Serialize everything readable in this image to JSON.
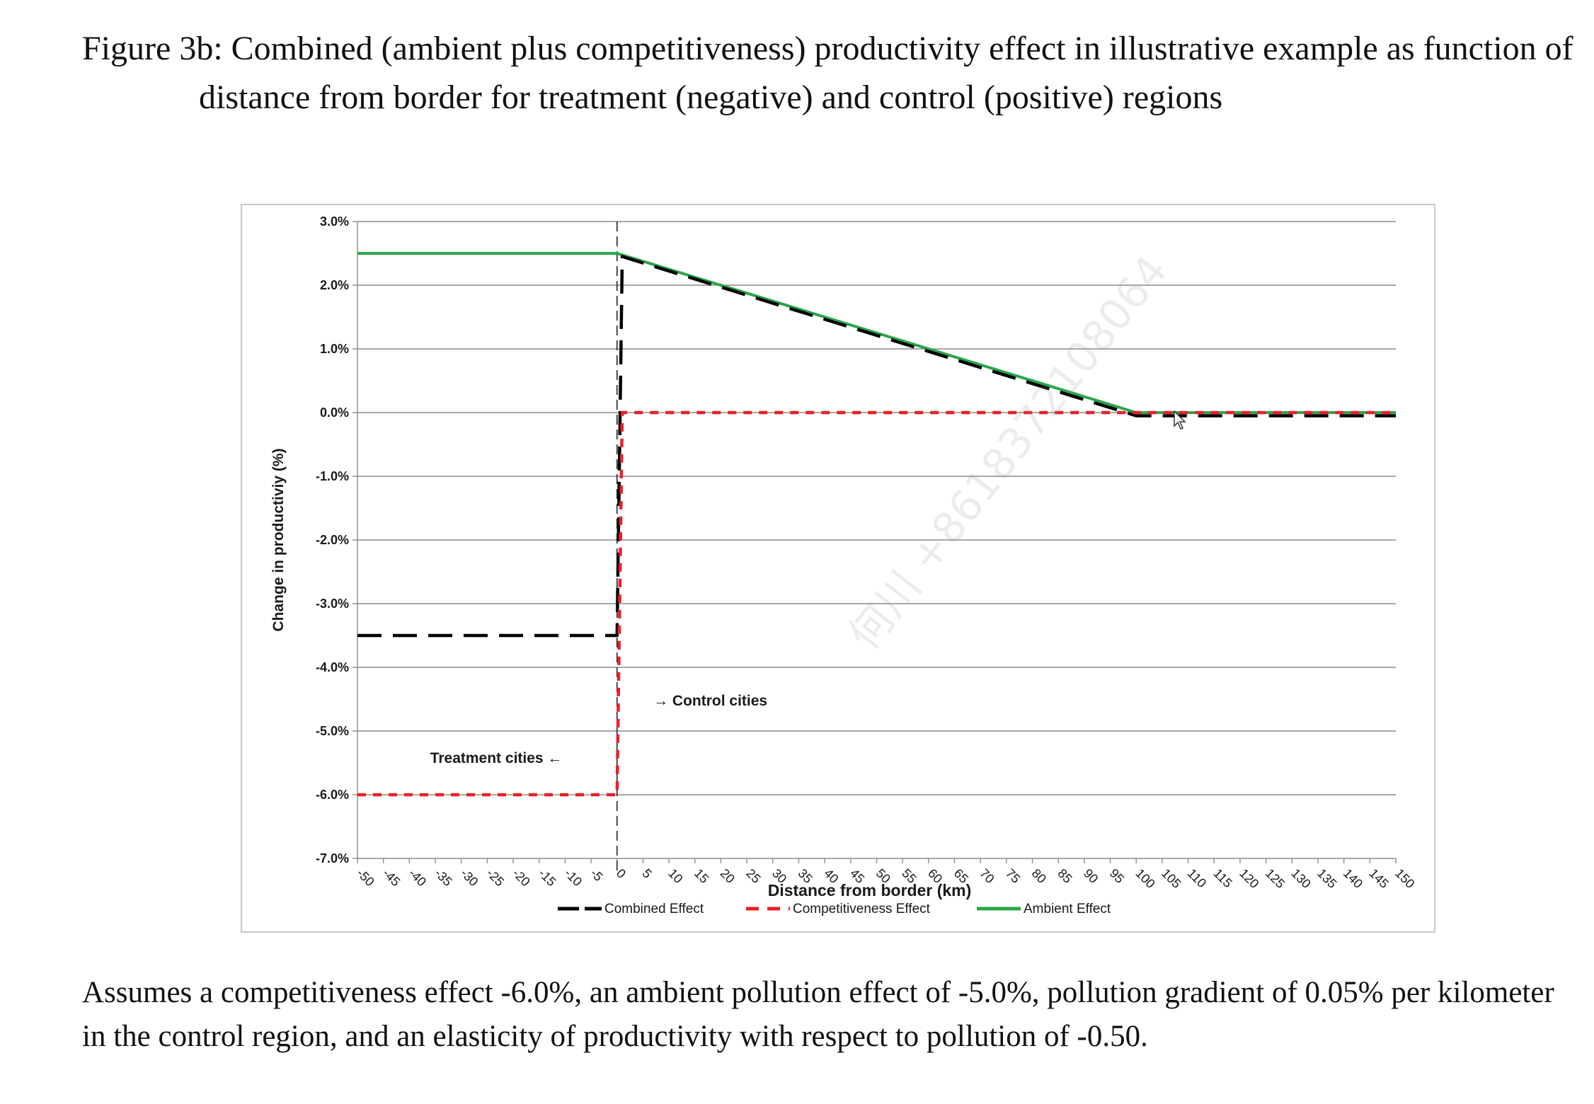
{
  "figure": {
    "title": "Figure 3b: Combined (ambient plus competitiveness) productivity effect in illustrative example as function of distance from border for treatment (negative) and control (positive) regions",
    "caption": "Assumes a competitiveness effect -6.0%, an ambient pollution effect of -5.0%, pollution gradient of 0.05% per kilometer in the control region, and an elasticity of productivity with respect to pollution of -0.50.",
    "watermark": "何川 +8618372108064"
  },
  "chart_data": {
    "type": "line",
    "title": "",
    "xlabel": "Distance from border (km)",
    "ylabel": "Change in productiviy (%)",
    "xlim": [
      -50,
      150
    ],
    "ylim": [
      -7.0,
      3.0
    ],
    "x_ticks": [
      -50,
      -45,
      -40,
      -35,
      -30,
      -25,
      -20,
      -15,
      -10,
      -5,
      0,
      5,
      10,
      15,
      20,
      25,
      30,
      35,
      40,
      45,
      50,
      55,
      60,
      65,
      70,
      75,
      80,
      85,
      90,
      95,
      100,
      105,
      110,
      115,
      120,
      125,
      130,
      135,
      140,
      145,
      150
    ],
    "y_ticks": [
      {
        "value": 3.0,
        "label": "3.0%"
      },
      {
        "value": 2.0,
        "label": "2.0%"
      },
      {
        "value": 1.0,
        "label": "1.0%"
      },
      {
        "value": 0.0,
        "label": "0.0%"
      },
      {
        "value": -1.0,
        "label": "-1.0%"
      },
      {
        "value": -2.0,
        "label": "-2.0%"
      },
      {
        "value": -3.0,
        "label": "-3.0%"
      },
      {
        "value": -4.0,
        "label": "-4.0%"
      },
      {
        "value": -5.0,
        "label": "-5.0%"
      },
      {
        "value": -6.0,
        "label": "-6.0%"
      },
      {
        "value": -7.0,
        "label": "-7.0%"
      }
    ],
    "grid": true,
    "legend_position": "bottom",
    "border_line_x": 0,
    "series": [
      {
        "name": "Combined Effect",
        "color": "#000000",
        "style": "long-dash",
        "points": [
          [
            -50,
            -3.5
          ],
          [
            0,
            -3.5
          ],
          [
            0,
            -3.5
          ],
          [
            1,
            2.45
          ],
          [
            100,
            -0.05
          ],
          [
            150,
            -0.05
          ]
        ]
      },
      {
        "name": "Competitiveness Effect",
        "color": "#e8202a",
        "style": "short-dash",
        "points": [
          [
            -50,
            -6.0
          ],
          [
            0,
            -6.0
          ],
          [
            1,
            0.0
          ],
          [
            150,
            0.0
          ]
        ]
      },
      {
        "name": "Ambient Effect",
        "color": "#2aa64a",
        "style": "solid",
        "points": [
          [
            -50,
            2.5
          ],
          [
            0,
            2.5
          ],
          [
            100,
            0.0
          ],
          [
            150,
            0.0
          ]
        ]
      }
    ],
    "annotations": [
      {
        "text": "→ Control cities",
        "x": 7,
        "y": -4.6
      },
      {
        "text": "Treatment cities ←",
        "x": -36,
        "y": -5.5
      }
    ]
  }
}
